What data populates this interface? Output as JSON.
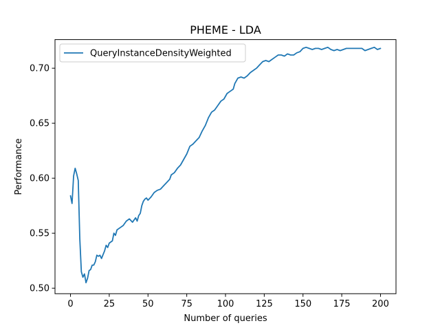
{
  "chart_data": {
    "type": "line",
    "title": "PHEME - LDA",
    "xlabel": "Number of queries",
    "ylabel": "Performance",
    "xlim": [
      -10,
      210
    ],
    "ylim": [
      0.495,
      0.726
    ],
    "xticks": [
      0,
      25,
      50,
      75,
      100,
      125,
      150,
      175,
      200
    ],
    "yticks": [
      0.5,
      0.55,
      0.6,
      0.65,
      0.7
    ],
    "grid": false,
    "legend_position": "top-left",
    "series": [
      {
        "name": "QueryInstanceDensityWeighted",
        "color": "#1f77b4",
        "points": [
          [
            0,
            0.584
          ],
          [
            1,
            0.577
          ],
          [
            2,
            0.602
          ],
          [
            3,
            0.609
          ],
          [
            4,
            0.604
          ],
          [
            5,
            0.598
          ],
          [
            6,
            0.545
          ],
          [
            7,
            0.515
          ],
          [
            8,
            0.51
          ],
          [
            9,
            0.513
          ],
          [
            10,
            0.505
          ],
          [
            11,
            0.509
          ],
          [
            12,
            0.516
          ],
          [
            13,
            0.517
          ],
          [
            14,
            0.521
          ],
          [
            15,
            0.521
          ],
          [
            16,
            0.524
          ],
          [
            17,
            0.53
          ],
          [
            18,
            0.529
          ],
          [
            19,
            0.53
          ],
          [
            20,
            0.527
          ],
          [
            22,
            0.534
          ],
          [
            23,
            0.539
          ],
          [
            24,
            0.537
          ],
          [
            25,
            0.541
          ],
          [
            27,
            0.543
          ],
          [
            28,
            0.55
          ],
          [
            29,
            0.548
          ],
          [
            30,
            0.553
          ],
          [
            32,
            0.555
          ],
          [
            34,
            0.557
          ],
          [
            36,
            0.561
          ],
          [
            38,
            0.563
          ],
          [
            40,
            0.56
          ],
          [
            42,
            0.564
          ],
          [
            43,
            0.561
          ],
          [
            44,
            0.566
          ],
          [
            45,
            0.568
          ],
          [
            46,
            0.575
          ],
          [
            47,
            0.579
          ],
          [
            48,
            0.581
          ],
          [
            49,
            0.582
          ],
          [
            50,
            0.58
          ],
          [
            52,
            0.583
          ],
          [
            54,
            0.587
          ],
          [
            56,
            0.589
          ],
          [
            58,
            0.59
          ],
          [
            60,
            0.593
          ],
          [
            62,
            0.596
          ],
          [
            64,
            0.599
          ],
          [
            65,
            0.603
          ],
          [
            67,
            0.605
          ],
          [
            69,
            0.609
          ],
          [
            71,
            0.612
          ],
          [
            73,
            0.617
          ],
          [
            75,
            0.622
          ],
          [
            77,
            0.629
          ],
          [
            79,
            0.631
          ],
          [
            81,
            0.634
          ],
          [
            83,
            0.637
          ],
          [
            85,
            0.643
          ],
          [
            87,
            0.648
          ],
          [
            89,
            0.655
          ],
          [
            91,
            0.66
          ],
          [
            93,
            0.662
          ],
          [
            95,
            0.666
          ],
          [
            97,
            0.67
          ],
          [
            99,
            0.672
          ],
          [
            101,
            0.677
          ],
          [
            103,
            0.679
          ],
          [
            105,
            0.681
          ],
          [
            106,
            0.686
          ],
          [
            108,
            0.691
          ],
          [
            110,
            0.692
          ],
          [
            112,
            0.691
          ],
          [
            114,
            0.693
          ],
          [
            116,
            0.696
          ],
          [
            118,
            0.698
          ],
          [
            120,
            0.7
          ],
          [
            122,
            0.703
          ],
          [
            124,
            0.706
          ],
          [
            126,
            0.707
          ],
          [
            128,
            0.706
          ],
          [
            130,
            0.708
          ],
          [
            132,
            0.71
          ],
          [
            134,
            0.712
          ],
          [
            136,
            0.712
          ],
          [
            138,
            0.711
          ],
          [
            140,
            0.713
          ],
          [
            142,
            0.712
          ],
          [
            144,
            0.712
          ],
          [
            146,
            0.714
          ],
          [
            148,
            0.715
          ],
          [
            150,
            0.718
          ],
          [
            152,
            0.719
          ],
          [
            154,
            0.718
          ],
          [
            156,
            0.717
          ],
          [
            158,
            0.718
          ],
          [
            160,
            0.718
          ],
          [
            162,
            0.717
          ],
          [
            164,
            0.718
          ],
          [
            166,
            0.719
          ],
          [
            168,
            0.717
          ],
          [
            170,
            0.716
          ],
          [
            172,
            0.717
          ],
          [
            174,
            0.716
          ],
          [
            176,
            0.717
          ],
          [
            178,
            0.718
          ],
          [
            180,
            0.718
          ],
          [
            184,
            0.718
          ],
          [
            188,
            0.718
          ],
          [
            190,
            0.716
          ],
          [
            192,
            0.717
          ],
          [
            194,
            0.718
          ],
          [
            196,
            0.719
          ],
          [
            198,
            0.717
          ],
          [
            200,
            0.718
          ]
        ]
      }
    ]
  }
}
